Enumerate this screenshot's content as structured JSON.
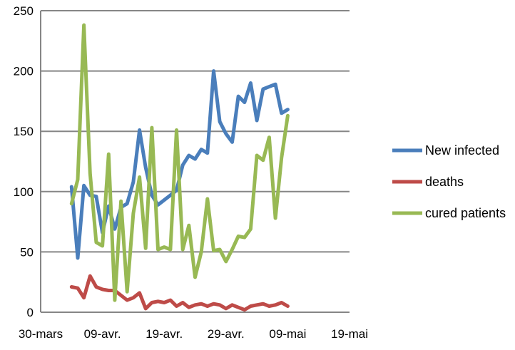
{
  "chart_data": {
    "type": "line",
    "title": "",
    "xlabel": "",
    "ylabel": "",
    "ylim": [
      0,
      250
    ],
    "yticks": [
      0,
      50,
      100,
      150,
      200,
      250
    ],
    "xlim": [
      "2020-03-30",
      "2020-05-19"
    ],
    "xtick_labels": [
      "30-mars",
      "09-avr.",
      "19-avr.",
      "29-avr.",
      "09-mai",
      "19-mai"
    ],
    "grid": "horizontal",
    "legend_position": "right",
    "x": [
      "2020-04-04",
      "2020-04-05",
      "2020-04-06",
      "2020-04-07",
      "2020-04-08",
      "2020-04-09",
      "2020-04-10",
      "2020-04-11",
      "2020-04-12",
      "2020-04-13",
      "2020-04-14",
      "2020-04-15",
      "2020-04-16",
      "2020-04-17",
      "2020-04-18",
      "2020-04-19",
      "2020-04-20",
      "2020-04-21",
      "2020-04-22",
      "2020-04-23",
      "2020-04-24",
      "2020-04-25",
      "2020-04-26",
      "2020-04-27",
      "2020-04-28",
      "2020-04-29",
      "2020-04-30",
      "2020-05-01",
      "2020-05-02",
      "2020-05-03",
      "2020-05-04",
      "2020-05-05",
      "2020-05-06",
      "2020-05-07",
      "2020-05-08",
      "2020-05-09",
      "2020-05-10",
      "2020-05-11"
    ],
    "series": [
      {
        "name": "New infected",
        "color": "#4a7ebb",
        "values": [
          104,
          45,
          105,
          97,
          96,
          66,
          88,
          69,
          87,
          90,
          108,
          151,
          120,
          97,
          89,
          93,
          97,
          101,
          122,
          130,
          127,
          135,
          132,
          200,
          158,
          148,
          141,
          179,
          174,
          190,
          159,
          185,
          187,
          189,
          165,
          168,
          null,
          null
        ]
      },
      {
        "name": "deaths",
        "color": "#be4b48",
        "values": [
          21,
          20,
          12,
          30,
          21,
          19,
          18,
          18,
          14,
          10,
          12,
          16,
          3,
          8,
          9,
          8,
          10,
          5,
          8,
          4,
          6,
          7,
          5,
          7,
          6,
          3,
          6,
          4,
          2,
          5,
          6,
          7,
          5,
          6,
          8,
          5,
          null,
          null
        ]
      },
      {
        "name": "cured patients",
        "color": "#98b954",
        "values": [
          90,
          110,
          238,
          115,
          58,
          55,
          131,
          10,
          92,
          17,
          82,
          112,
          53,
          153,
          52,
          54,
          52,
          151,
          52,
          72,
          29,
          50,
          94,
          51,
          52,
          42,
          52,
          63,
          62,
          69,
          130,
          126,
          145,
          78,
          128,
          163,
          null,
          null
        ]
      }
    ]
  }
}
